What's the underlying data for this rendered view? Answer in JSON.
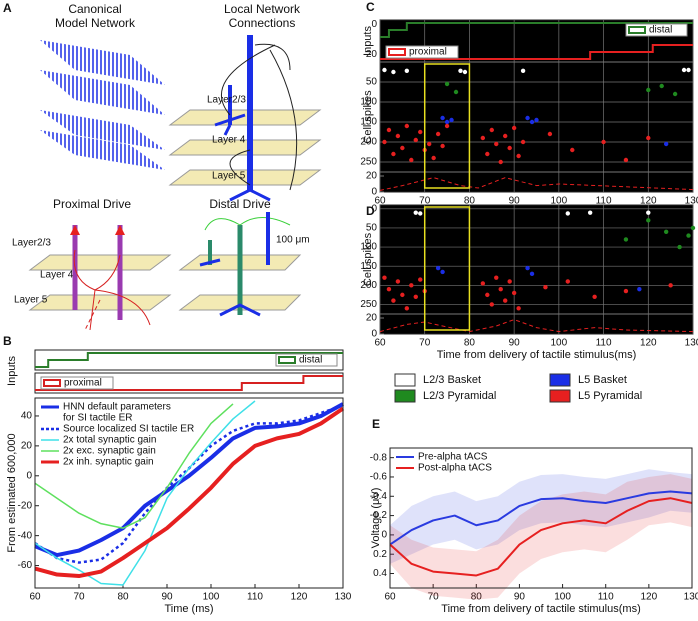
{
  "panel_labels": [
    "A",
    "B",
    "C",
    "D",
    "E"
  ],
  "diagram": {
    "canonical": {
      "title": [
        "Canonical",
        "Model Network"
      ]
    },
    "local": {
      "title": [
        "Local Network",
        "Connections"
      ],
      "layers": [
        "Layer2/3",
        "Layer 4",
        "Layer 5"
      ]
    },
    "proximal": {
      "title": "Proximal Drive",
      "layers": [
        "Layer2/3",
        "Layer 4",
        "Layer 5"
      ]
    },
    "distal": {
      "title": "Distal Drive"
    },
    "scale_bar": "100 μm"
  },
  "raster_legend": [
    {
      "name": "L2/3 Basket",
      "color": "#ffffff"
    },
    {
      "name": "L2/3 Pyramidal",
      "color": "#1f8a1f"
    },
    {
      "name": "L5 Basket",
      "color": "#1a2ee6"
    },
    {
      "name": "L5 Pyramidal",
      "color": "#e62020"
    }
  ],
  "chart_data": [
    {
      "type": "line",
      "xlabel": "Time (ms)",
      "ylabel": "From estimated 600,000",
      "inputs_label": "Inputs",
      "inputs": [
        {
          "name": "distal",
          "color": "#2a7d2a",
          "side": "right",
          "x": [
            60,
            63,
            72
          ],
          "values": [
            0,
            1,
            2
          ]
        },
        {
          "name": "proximal",
          "color": "#d62020",
          "side": "left",
          "x": [
            60,
            107,
            121
          ],
          "values": [
            0,
            1,
            2
          ]
        }
      ],
      "x": [
        60,
        65,
        70,
        75,
        80,
        85,
        90,
        95,
        100,
        105,
        110,
        115,
        120,
        125,
        130
      ],
      "xlim": [
        60,
        130
      ],
      "xticks": [
        60,
        70,
        80,
        90,
        100,
        110,
        120,
        130
      ],
      "ylim": [
        -75,
        52
      ],
      "yticks": [
        -60,
        -40,
        -20,
        0,
        20,
        40
      ],
      "legend": "upper left",
      "series": [
        {
          "name": "HNN default parameters",
          "name2": "for SI tactile ER",
          "color": "#1a2ee6",
          "width": 4,
          "dash": "solid",
          "values": [
            -47,
            -53,
            -50,
            -43,
            -35,
            -20,
            -10,
            0,
            12,
            25,
            32,
            33,
            35,
            40,
            48
          ]
        },
        {
          "name": "Source localized SI tactile ER",
          "color": "#1a2ee6",
          "width": 2.5,
          "dash": "dotted",
          "values": [
            -45,
            -55,
            -58,
            -56,
            -45,
            -25,
            -8,
            5,
            20,
            30,
            35,
            35,
            37,
            42,
            47
          ]
        },
        {
          "name": "2x total synaptic gain",
          "color": "#3fe0e8",
          "width": 1.5,
          "dash": "solid",
          "values": [
            -45,
            -55,
            -63,
            -72,
            -73,
            -50,
            -15,
            5,
            22,
            38,
            50,
            null,
            null,
            null,
            null
          ]
        },
        {
          "name": "2x exc. synaptic gain",
          "color": "#5ee05e",
          "width": 1.5,
          "dash": "solid",
          "values": [
            -5,
            -15,
            -25,
            -32,
            -35,
            -28,
            -8,
            15,
            35,
            48,
            null,
            null,
            null,
            null,
            null
          ]
        },
        {
          "name": "2x inh. synaptic gain",
          "color": "#e62020",
          "width": 4,
          "dash": "solid",
          "values": [
            -62,
            -66,
            -67,
            -64,
            -55,
            -45,
            -35,
            -22,
            -8,
            8,
            20,
            25,
            28,
            35,
            45
          ]
        }
      ]
    },
    {
      "type": "raster",
      "ylabel": "Cell spikes",
      "inputs_label": "Inputs",
      "inputs": [
        {
          "name": "distal",
          "color": "#2a7d2a",
          "side": "right",
          "x": [
            60,
            62,
            66
          ],
          "values": [
            0,
            1,
            2
          ]
        },
        {
          "name": "proximal",
          "color": "#e62020",
          "side": "left",
          "x": [
            60,
            107,
            121
          ],
          "values": [
            0,
            1,
            2
          ]
        }
      ],
      "input_ylim": [
        25,
        -3
      ],
      "input_ticks": [
        0,
        20
      ],
      "xlim": [
        60,
        130
      ],
      "xticks": [
        60,
        70,
        80,
        90,
        100,
        110,
        120,
        130
      ],
      "ylim": [
        275,
        0
      ],
      "yticks": [
        50,
        100,
        150,
        200,
        250
      ],
      "grid": true,
      "highlight": [
        70,
        80
      ],
      "highlight_color": "#e8e020",
      "dipole": {
        "color": "#e62020",
        "x": [
          60,
          65,
          72,
          78,
          82,
          88,
          95,
          100,
          130
        ],
        "values": [
          2,
          8,
          18,
          8,
          5,
          18,
          8,
          10,
          3
        ]
      },
      "dipole_ylim": [
        0,
        25
      ],
      "dipole_ticks": [
        20,
        0
      ],
      "series": [
        {
          "color": "#ffffff",
          "x": [
            61,
            63,
            66,
            78,
            79,
            92,
            128,
            129
          ],
          "values": [
            20,
            25,
            22,
            22,
            25,
            22,
            20,
            20
          ]
        },
        {
          "color": "#1f8a1f",
          "x": [
            75,
            77,
            120,
            123,
            126
          ],
          "values": [
            55,
            75,
            70,
            60,
            80
          ]
        },
        {
          "color": "#1a2ee6",
          "x": [
            74,
            75,
            76,
            93,
            94,
            95,
            124
          ],
          "values": [
            140,
            150,
            145,
            140,
            150,
            145,
            205
          ]
        },
        {
          "color": "#e62020",
          "x": [
            61,
            62,
            63,
            64,
            65,
            66,
            67,
            68,
            69,
            70,
            71,
            72,
            73,
            74,
            75,
            83,
            84,
            85,
            86,
            87,
            88,
            89,
            90,
            91,
            92,
            98,
            103,
            110,
            115,
            120
          ],
          "values": [
            200,
            170,
            230,
            185,
            215,
            160,
            245,
            195,
            175,
            220,
            205,
            240,
            180,
            210,
            160,
            190,
            230,
            170,
            205,
            250,
            185,
            215,
            165,
            235,
            200,
            180,
            220,
            200,
            245,
            190
          ]
        }
      ]
    },
    {
      "type": "raster",
      "ylabel": "Cell spikes",
      "xlabel": "Time from delivery of tactile stimulus(ms)",
      "xlim": [
        60,
        130
      ],
      "xticks": [
        60,
        70,
        80,
        90,
        100,
        110,
        120,
        130
      ],
      "ylim": [
        275,
        -10
      ],
      "yticks": [
        0,
        50,
        100,
        150,
        200,
        250
      ],
      "grid": true,
      "highlight": [
        70,
        80
      ],
      "highlight_color": "#e8e020",
      "dipole": {
        "color": "#e62020",
        "x": [
          60,
          66,
          70,
          74,
          80,
          86,
          90,
          95,
          100,
          108,
          115,
          130
        ],
        "values": [
          3,
          12,
          15,
          10,
          3,
          10,
          18,
          8,
          3,
          8,
          5,
          3
        ]
      },
      "dipole_ylim": [
        0,
        25
      ],
      "dipole_ticks": [
        20,
        0
      ],
      "series": [
        {
          "color": "#ffffff",
          "x": [
            68,
            69,
            102,
            107,
            120
          ],
          "values": [
            10,
            12,
            12,
            10,
            10
          ]
        },
        {
          "color": "#1f8a1f",
          "x": [
            115,
            120,
            124,
            127,
            129,
            130
          ],
          "values": [
            80,
            30,
            60,
            100,
            70,
            50
          ]
        },
        {
          "color": "#1a2ee6",
          "x": [
            73,
            74,
            93,
            94,
            118
          ],
          "values": [
            155,
            165,
            155,
            170,
            210
          ]
        },
        {
          "color": "#e62020",
          "x": [
            61,
            62,
            63,
            64,
            65,
            66,
            67,
            68,
            69,
            70,
            83,
            84,
            85,
            86,
            87,
            88,
            89,
            90,
            91,
            97,
            102,
            108,
            115,
            125
          ],
          "values": [
            180,
            210,
            240,
            190,
            225,
            260,
            200,
            230,
            185,
            215,
            195,
            225,
            250,
            180,
            210,
            240,
            190,
            220,
            260,
            205,
            190,
            230,
            215,
            200
          ]
        }
      ]
    },
    {
      "type": "line",
      "xlabel": "Time from delivery of tactile stimulus(ms)",
      "ylabel": "Voltage (μV)",
      "x": [
        60,
        65,
        70,
        75,
        80,
        85,
        90,
        95,
        100,
        105,
        110,
        115,
        120,
        125,
        130
      ],
      "xlim": [
        60,
        130
      ],
      "xticks": [
        60,
        70,
        80,
        90,
        100,
        110,
        120,
        130
      ],
      "ylim": [
        0.55,
        -0.9
      ],
      "yticks": [
        -0.8,
        -0.6,
        -0.4,
        -0.2,
        0,
        0.2,
        0.4
      ],
      "legend": "upper left",
      "series": [
        {
          "name": "Pre-alpha tACS",
          "color": "#2a3be0",
          "width": 2,
          "dash": "solid",
          "values": [
            0.1,
            -0.05,
            -0.15,
            -0.2,
            -0.1,
            -0.15,
            -0.3,
            -0.37,
            -0.38,
            -0.35,
            -0.33,
            -0.38,
            -0.43,
            -0.45,
            -0.43
          ],
          "errors": [
            0.2,
            0.25,
            0.25,
            0.25,
            0.25,
            0.25,
            0.25,
            0.25,
            0.25,
            0.25,
            0.25,
            0.25,
            0.25,
            0.2,
            0.2
          ]
        },
        {
          "name": "Post-alpha tACS",
          "color": "#e62020",
          "width": 2,
          "dash": "solid",
          "values": [
            0.1,
            0.3,
            0.38,
            0.4,
            0.42,
            0.35,
            0.1,
            -0.05,
            -0.12,
            -0.15,
            -0.12,
            -0.25,
            -0.35,
            -0.38,
            -0.33
          ],
          "errors": [
            0.2,
            0.25,
            0.25,
            0.25,
            0.25,
            0.3,
            0.3,
            0.3,
            0.3,
            0.3,
            0.3,
            0.3,
            0.25,
            0.25,
            0.25
          ]
        }
      ]
    }
  ]
}
